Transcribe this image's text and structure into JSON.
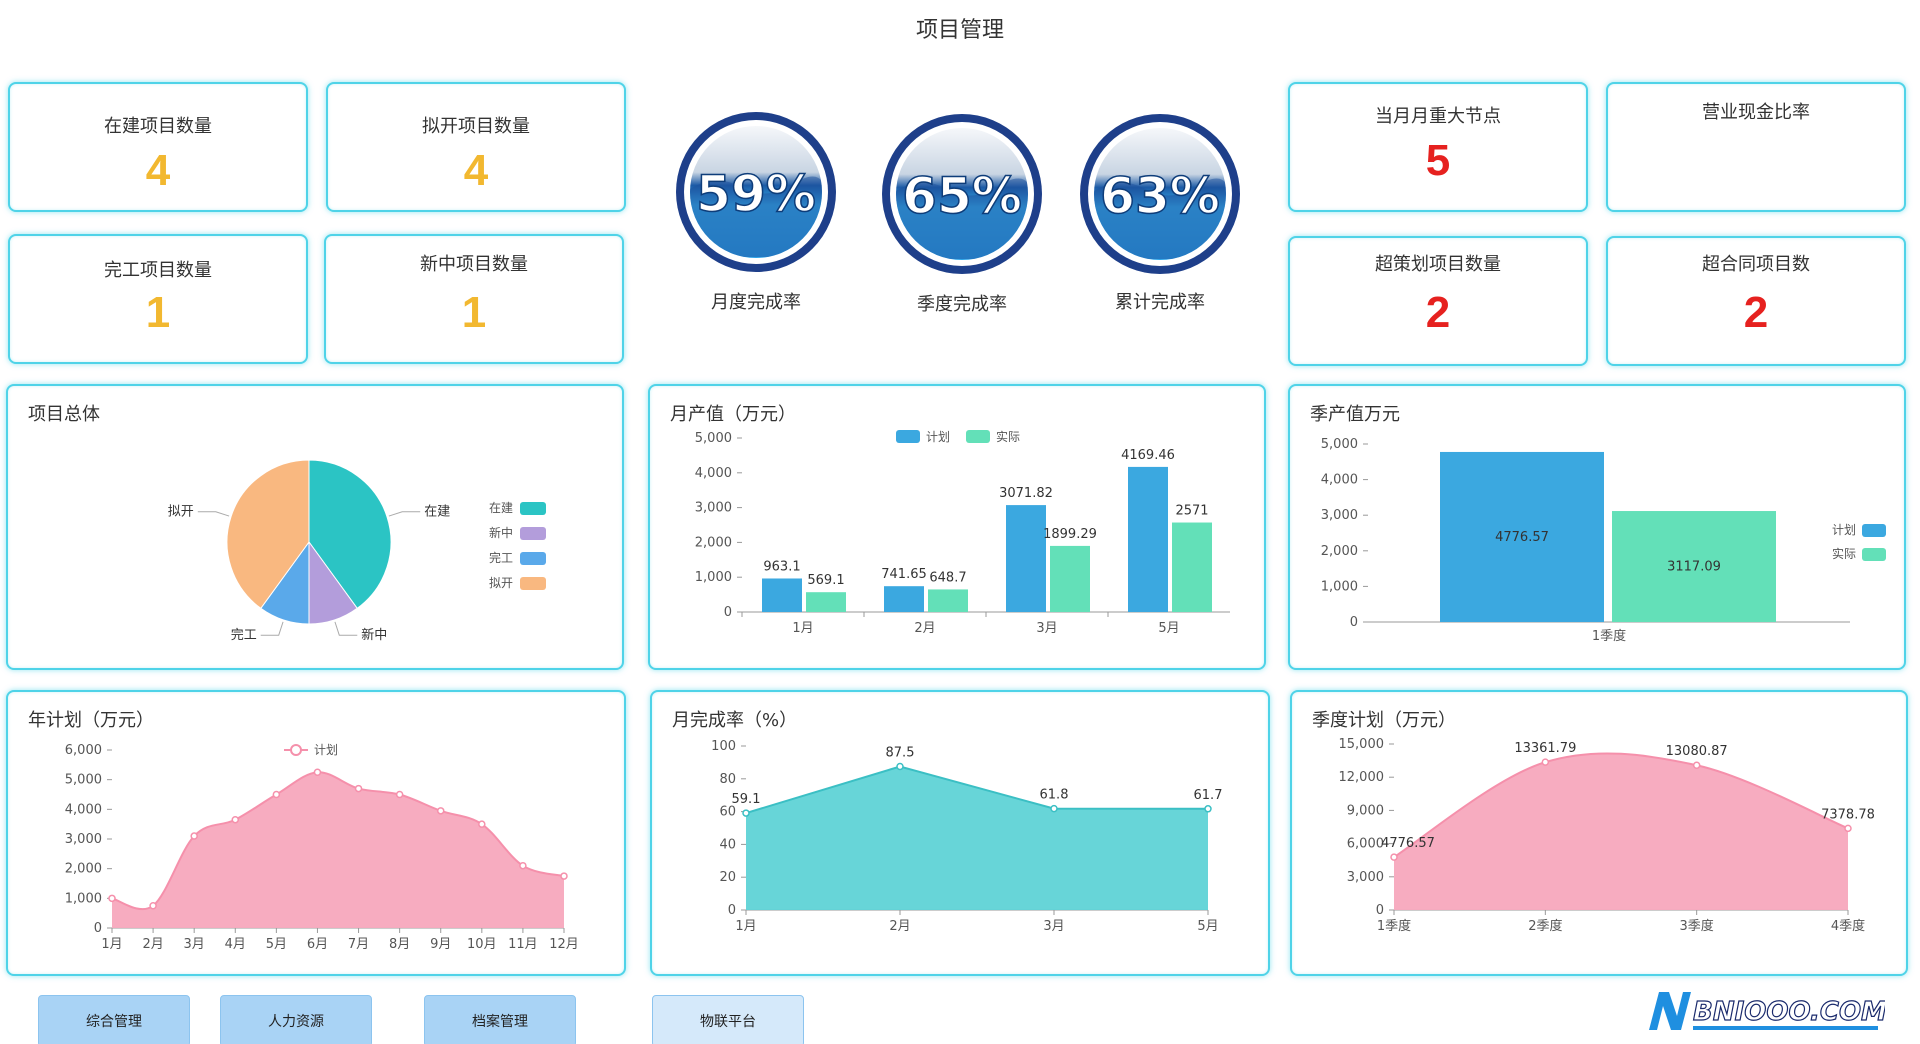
{
  "title": "项目管理",
  "kpis": {
    "in_construction": {
      "label": "在建项目数量",
      "value": "4"
    },
    "planned": {
      "label": "拟开项目数量",
      "value": "4"
    },
    "completed": {
      "label": "完工项目数量",
      "value": "1"
    },
    "new_won": {
      "label": "新中项目数量",
      "value": "1"
    },
    "milestones": {
      "label": "当月月重大节点",
      "value": "5"
    },
    "cash_ratio": {
      "label": "营业现金比率",
      "value": ""
    },
    "over_plan": {
      "label": "超策划项目数量",
      "value": "2"
    },
    "over_contract": {
      "label": "超合同项目数",
      "value": "2"
    }
  },
  "gauges": [
    {
      "label": "月度完成率",
      "value": "59%"
    },
    {
      "label": "季度完成率",
      "value": "65%"
    },
    {
      "label": "累计完成率",
      "value": "63%"
    }
  ],
  "colors": {
    "accent_border": "#4fd3e8",
    "kpi_yellow": "#f2b830",
    "kpi_red": "#e6211f",
    "plan_blue": "#3ba8e0",
    "actual_green": "#63e0b8",
    "pink": "#f7a8bd",
    "teal": "#5fd3d6"
  },
  "nav": [
    "综合管理",
    "人力资源",
    "档案管理",
    "物联平台"
  ],
  "logo_text": "BNIOOO.COM",
  "chart_data": [
    {
      "type": "pie",
      "title": "项目总体",
      "legend": [
        "在建",
        "新中",
        "完工",
        "拟开"
      ],
      "slices": [
        {
          "name": "在建",
          "value": 4,
          "color": "#2bc4c4"
        },
        {
          "name": "新中",
          "value": 1,
          "color": "#b39ddb"
        },
        {
          "name": "完工",
          "value": 1,
          "color": "#5aa9ea"
        },
        {
          "name": "拟开",
          "value": 4,
          "color": "#f9b880"
        }
      ],
      "legend_position": "right"
    },
    {
      "type": "bar",
      "title": "月产值（万元）",
      "categories": [
        "1月",
        "2月",
        "3月",
        "5月"
      ],
      "series": [
        {
          "name": "计划",
          "values": [
            963.1,
            741.65,
            3071.82,
            4169.46
          ],
          "labels": [
            "963.1",
            "741.65",
            "3071.82",
            "4169.46"
          ]
        },
        {
          "name": "实际",
          "values": [
            569.1,
            648.7,
            1899.29,
            2571
          ],
          "labels": [
            "569.1",
            "648.7",
            "1899.29",
            "2571"
          ]
        }
      ],
      "yticks": [
        "0",
        "1,000",
        "2,000",
        "3,000",
        "4,000",
        "5,000"
      ],
      "ylim": [
        0,
        5000
      ],
      "legend_position": "top"
    },
    {
      "type": "bar",
      "title": "季产值万元",
      "categories": [
        "1季度"
      ],
      "series": [
        {
          "name": "计划",
          "values": [
            4776.57
          ],
          "labels": [
            "4776.57"
          ]
        },
        {
          "name": "实际",
          "values": [
            3117.09
          ],
          "labels": [
            "3117.09"
          ]
        }
      ],
      "yticks": [
        "0",
        "1,000",
        "2,000",
        "3,000",
        "4,000",
        "5,000"
      ],
      "ylim": [
        0,
        5000
      ],
      "legend_position": "right"
    },
    {
      "type": "area",
      "title": "年计划（万元）",
      "categories": [
        "1月",
        "2月",
        "3月",
        "4月",
        "5月",
        "6月",
        "7月",
        "8月",
        "9月",
        "10月",
        "11月",
        "12月"
      ],
      "series": [
        {
          "name": "计划",
          "values": [
            1000,
            750,
            3100,
            3650,
            4500,
            5250,
            4700,
            4500,
            3950,
            3500,
            2100,
            1750
          ]
        }
      ],
      "yticks": [
        "0",
        "1,000",
        "2,000",
        "3,000",
        "4,000",
        "5,000",
        "6,000"
      ],
      "ylim": [
        0,
        6000
      ],
      "legend_position": "top"
    },
    {
      "type": "area",
      "title": "月完成率（%）",
      "categories": [
        "1月",
        "2月",
        "3月",
        "5月"
      ],
      "series": [
        {
          "values": [
            59.1,
            87.5,
            61.8,
            61.7
          ],
          "labels": [
            "59.1",
            "87.5",
            "61.8",
            "61.7"
          ]
        }
      ],
      "yticks": [
        "0",
        "20",
        "40",
        "60",
        "80",
        "100"
      ],
      "ylim": [
        0,
        100
      ]
    },
    {
      "type": "area",
      "title": "季度计划（万元）",
      "categories": [
        "1季度",
        "2季度",
        "3季度",
        "4季度"
      ],
      "series": [
        {
          "values": [
            4776.57,
            13361.79,
            13080.87,
            7378.78
          ],
          "labels": [
            "4776.57",
            "13361.79",
            "13080.87",
            "7378.78"
          ]
        }
      ],
      "yticks": [
        "0",
        "3,000",
        "6,000",
        "9,000",
        "12,000",
        "15,000"
      ],
      "ylim": [
        0,
        15000
      ]
    }
  ]
}
